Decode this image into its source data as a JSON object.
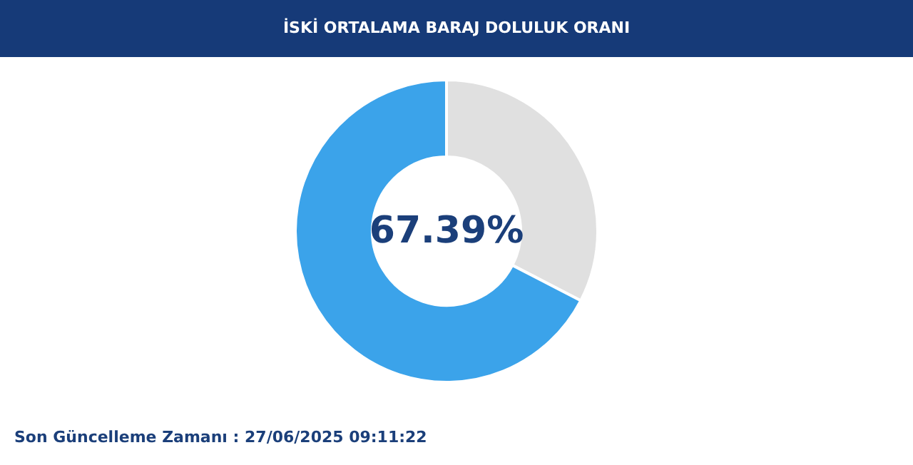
{
  "chart_data": {
    "type": "donut",
    "title": "İSKİ ORTALAMA BARAJ DOLULUK ORANI",
    "categories": [
      null,
      null
    ],
    "values": [
      32.61,
      67.39
    ],
    "colors": [
      "#e0e0e0",
      "#3ba3ea"
    ],
    "value_labels": [
      null,
      "67.39%"
    ],
    "annotations": [
      "Son Güncelleme Zamanı : 27/06/2025 09:11:22"
    ]
  }
}
